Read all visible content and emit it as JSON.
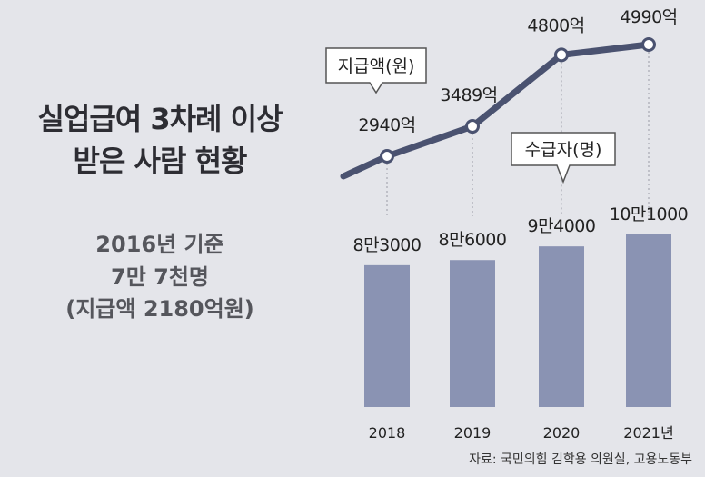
{
  "title_lines": [
    "실업급여 3차례 이상",
    "받은 사람 현황"
  ],
  "baseline_lines": [
    "2016년 기준",
    "7만 7천명",
    "(지급액 2180억원)"
  ],
  "source": "자료: 국민의힘 김학용 의원실, 고용노동부",
  "colors": {
    "background": "#e4e5ea",
    "bar": "#8a93b3",
    "line": "#4a5270"
  },
  "chart_data": {
    "type": "bar+line",
    "categories": [
      "2018",
      "2019",
      "2020",
      "2021년"
    ],
    "series": [
      {
        "name": "수급자(명)",
        "type": "bar",
        "values": [
          83000,
          86000,
          94000,
          101000
        ],
        "labels": [
          "8만3000",
          "8만6000",
          "9만4000",
          "10만1000"
        ]
      },
      {
        "name": "지급액(원)",
        "type": "line",
        "values": [
          2940,
          3489,
          4800,
          4990
        ],
        "labels": [
          "2940억",
          "3489억",
          "4800억",
          "4990억"
        ]
      }
    ],
    "grid": false,
    "legend": "callouts"
  }
}
